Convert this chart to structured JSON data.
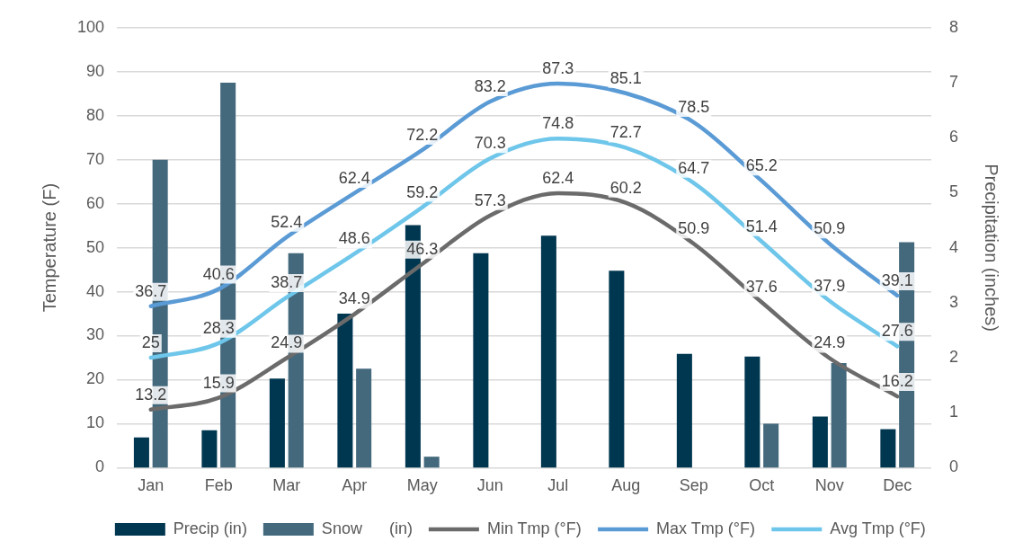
{
  "chart_data": {
    "type": "bar",
    "categories": [
      "Jan",
      "Feb",
      "Mar",
      "Apr",
      "May",
      "Jun",
      "Jul",
      "Aug",
      "Sep",
      "Oct",
      "Nov",
      "Dec"
    ],
    "ylabel": "Temperature (F)",
    "y2label": "Precipitation (inches)",
    "ylim": [
      0,
      100
    ],
    "yticks": [
      0,
      10,
      20,
      30,
      40,
      50,
      60,
      70,
      80,
      90,
      100
    ],
    "y2lim": [
      0,
      8
    ],
    "y2ticks": [
      0,
      1,
      2,
      3,
      4,
      5,
      6,
      7,
      8
    ],
    "grid": "y",
    "legend": "bottom",
    "series": [
      {
        "name": "Precip (in)",
        "axis": "y2",
        "color": "#003750",
        "values": [
          0.55,
          0.68,
          1.62,
          2.8,
          4.41,
          3.9,
          4.22,
          3.58,
          2.07,
          2.02,
          0.93,
          0.7
        ]
      },
      {
        "name": "Snow      (in)",
        "axis": "y2",
        "color": "#44697d",
        "values": [
          5.6,
          7.0,
          3.9,
          1.8,
          0.2,
          0,
          0,
          0,
          0,
          0.8,
          1.9,
          4.1
        ]
      },
      {
        "name": "Min Tmp (°F)",
        "type": "line",
        "axis": "y",
        "color": "#6b6b6b",
        "values": [
          13.2,
          15.9,
          24.9,
          34.9,
          46.3,
          57.3,
          62.4,
          60.2,
          50.9,
          37.6,
          24.9,
          16.2
        ],
        "value_labels": [
          "13.2",
          "15.9",
          "24.9",
          "34.9",
          "46.3",
          "57.3",
          "62.4",
          "60.2",
          "50.9",
          "37.6",
          "24.9",
          "16.2"
        ]
      },
      {
        "name": "Max Tmp (°F)",
        "type": "line",
        "axis": "y",
        "color": "#5b9bd5",
        "values": [
          36.7,
          40.6,
          52.4,
          62.4,
          72.2,
          83.2,
          87.3,
          85.1,
          78.5,
          65.2,
          50.9,
          39.1
        ],
        "value_labels": [
          "36.7",
          "40.6",
          "52.4",
          "62.4",
          "72.2",
          "83.2",
          "87.3",
          "85.1",
          "78.5",
          "65.2",
          "50.9",
          "39.1"
        ]
      },
      {
        "name": "Avg Tmp (°F)",
        "type": "line",
        "axis": "y",
        "color": "#6ec6ea",
        "values": [
          25,
          28.3,
          38.7,
          48.6,
          59.2,
          70.3,
          74.8,
          72.7,
          64.7,
          51.4,
          37.9,
          27.6
        ],
        "value_labels": [
          "25",
          "28.3",
          "38.7",
          "48.6",
          "59.2",
          "70.3",
          "74.8",
          "72.7",
          "64.7",
          "51.4",
          "37.9",
          "27.6"
        ]
      }
    ]
  }
}
